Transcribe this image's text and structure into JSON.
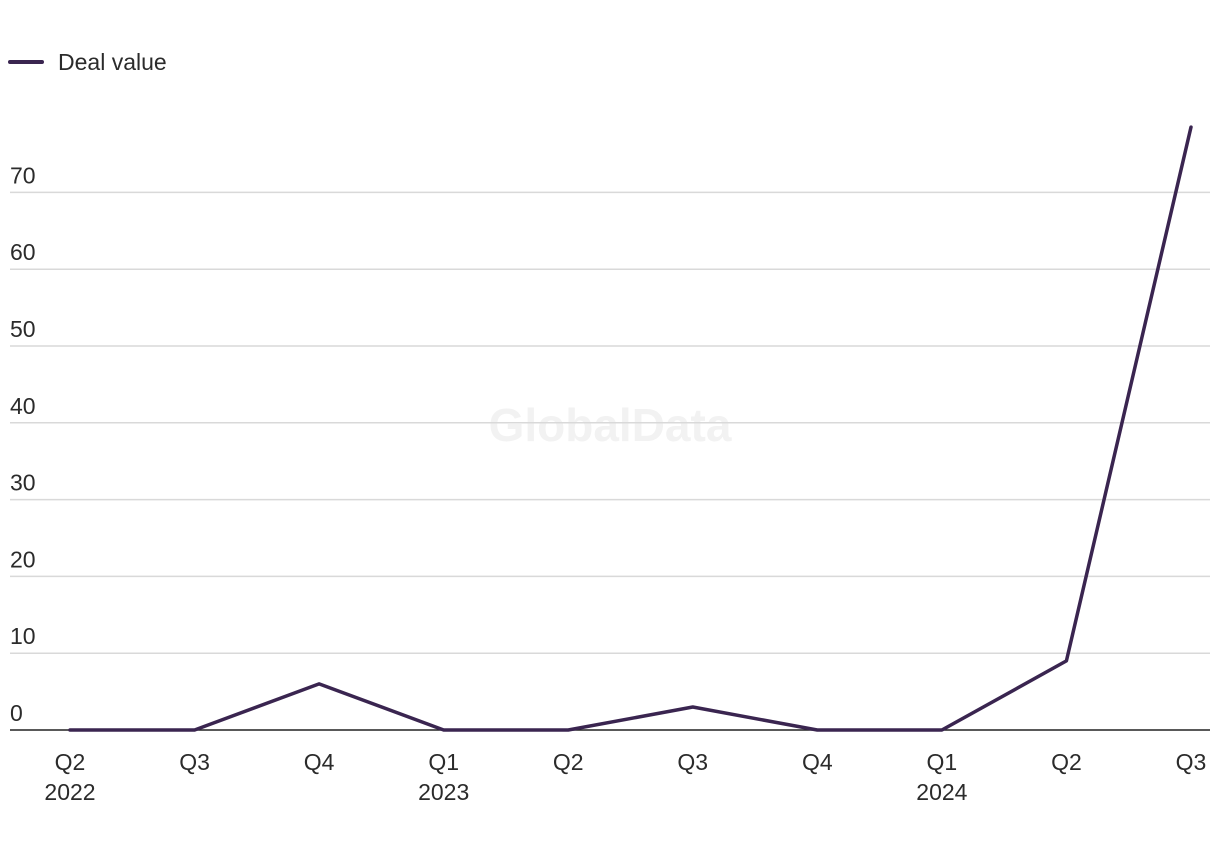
{
  "chart_data": {
    "type": "line",
    "categories": [
      "Q2",
      "Q3",
      "Q4",
      "Q1",
      "Q2",
      "Q3",
      "Q4",
      "Q1",
      "Q2",
      "Q3"
    ],
    "year_labels": [
      "2022",
      "",
      "",
      "2023",
      "",
      "",
      "",
      "2024",
      "",
      ""
    ],
    "series": [
      {
        "name": "Deal value",
        "color": "#3a2550",
        "values": [
          0,
          0,
          6,
          0,
          0,
          3,
          0,
          0,
          9,
          78.5
        ]
      }
    ],
    "yticks": [
      0,
      10,
      20,
      30,
      40,
      50,
      60,
      70
    ],
    "ylim": [
      0,
      80
    ],
    "grid": true,
    "legend_position": "top-left",
    "watermark": "GlobalData"
  }
}
